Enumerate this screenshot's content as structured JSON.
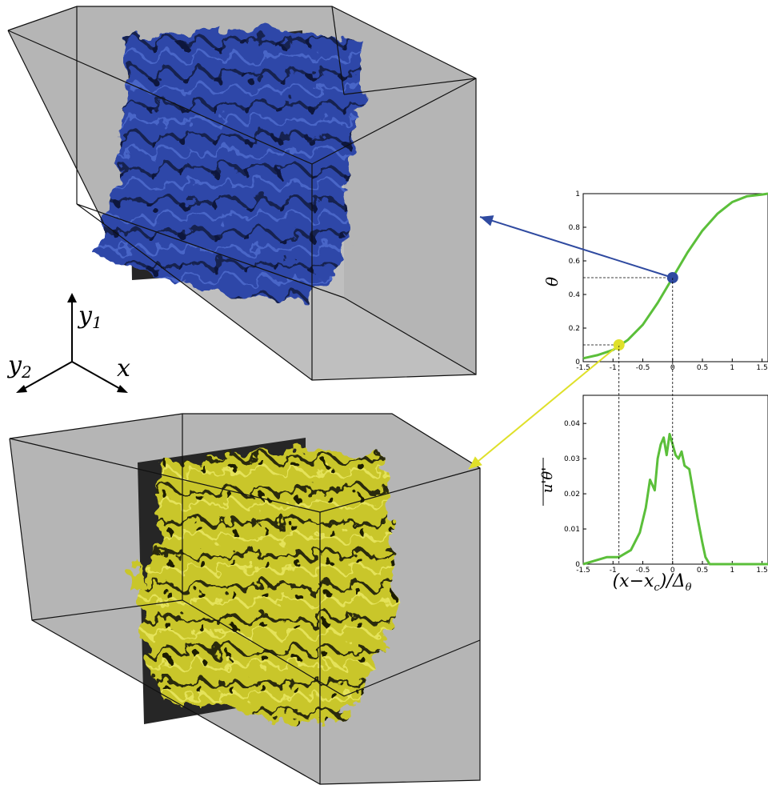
{
  "axes_triad": {
    "up_label": "y",
    "up_sub": "1",
    "left_label": "y",
    "left_sub": "2",
    "right_label": "x"
  },
  "colors": {
    "box_face": "#b5b5b5",
    "box_edge": "#111111",
    "dark_plane": "#262626",
    "blue_isosurface": "#2f47a8",
    "yellow_isosurface": "#d3d12a",
    "curve": "#5bbf3a",
    "blue_marker": "#2f4aa0",
    "yellow_marker": "#dfe02a"
  },
  "chart_data": [
    {
      "type": "line",
      "ylabel": "θ",
      "xlim": [
        -1.5,
        1.6
      ],
      "ylim": [
        0,
        1
      ],
      "xticks": [
        "-1.5",
        "-1",
        "-0.5",
        "0",
        "0.5",
        "1",
        "1.5"
      ],
      "yticks": [
        "0",
        "0.2",
        "0.4",
        "0.6",
        "0.8",
        "1"
      ],
      "series": [
        {
          "x": [
            -1.5,
            -1.25,
            -1.0,
            -0.75,
            -0.5,
            -0.25,
            0.0,
            0.25,
            0.5,
            0.75,
            1.0,
            1.25,
            1.5,
            1.6
          ],
          "y": [
            0.02,
            0.04,
            0.07,
            0.13,
            0.22,
            0.35,
            0.5,
            0.65,
            0.78,
            0.88,
            0.95,
            0.985,
            0.995,
            1.0
          ]
        }
      ],
      "markers": [
        {
          "name": "blue",
          "x": 0.0,
          "y": 0.5
        },
        {
          "name": "yellow",
          "x": -0.9,
          "y": 0.1
        }
      ]
    },
    {
      "type": "line",
      "ylabel": "u'θ'",
      "xlabel": "(x−x_c)/Δ_θ",
      "xlabel_main": "(x−x",
      "xlabel_sub": "c",
      "xlabel_mid": ")/Δ",
      "xlabel_sub2": "θ",
      "xlim": [
        -1.5,
        1.6
      ],
      "ylim": [
        0,
        0.048
      ],
      "xticks": [
        "-1.5",
        "-1",
        "-0.5",
        "0",
        "0.5",
        "1",
        "1.5"
      ],
      "yticks": [
        "0",
        "0.01",
        "0.02",
        "0.03",
        "0.04"
      ],
      "series": [
        {
          "x": [
            -1.5,
            -1.3,
            -1.1,
            -0.9,
            -0.7,
            -0.55,
            -0.45,
            -0.38,
            -0.3,
            -0.25,
            -0.2,
            -0.15,
            -0.1,
            -0.05,
            0.0,
            0.05,
            0.1,
            0.15,
            0.2,
            0.28,
            0.35,
            0.42,
            0.5,
            0.55,
            0.62,
            0.8,
            1.2,
            1.6
          ],
          "y": [
            0.0,
            0.001,
            0.002,
            0.002,
            0.004,
            0.009,
            0.016,
            0.024,
            0.021,
            0.03,
            0.034,
            0.036,
            0.031,
            0.037,
            0.034,
            0.031,
            0.03,
            0.032,
            0.028,
            0.027,
            0.02,
            0.013,
            0.006,
            0.002,
            0.0,
            0.0,
            0.0,
            0.0
          ]
        }
      ]
    }
  ]
}
